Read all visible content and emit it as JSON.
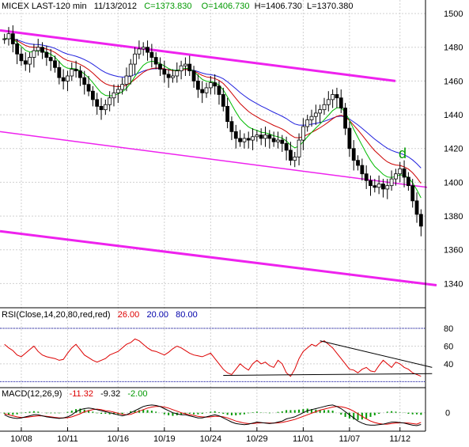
{
  "header": {
    "instrument": "MICEX LAST-120 min",
    "date": "11/13/2012",
    "close": "C=1373.830",
    "open": "O=1406.730",
    "high": "H=1406.730",
    "low": "L=1370.380"
  },
  "rsi_header": {
    "name": "RSI(Close,14,20,80,red,red)",
    "value": "26.00",
    "low_level": "20.00",
    "high_level": "80.00"
  },
  "macd_header": {
    "name": "MACD(12,26,9)",
    "macd": "-11.32",
    "signal": "-9.32",
    "hist": "-2.00"
  },
  "annotation": "d",
  "colors": {
    "price": "#000000",
    "ma_fast": "#00bb00",
    "ma_mid": "#cc0000",
    "ma_slow": "#2020dd",
    "channel": "#ee22ee",
    "rsi": "#dd0000",
    "rsi_level": "#000099",
    "macd": "#000000",
    "macd_signal": "#dd0000",
    "macd_hist": "#009900",
    "grid": "#d0d0d0"
  },
  "chart_data": [
    {
      "type": "line",
      "pane": "price",
      "chart_style": "ohlc",
      "x": [
        "10/08",
        "10/11",
        "10/16",
        "10/19",
        "10/24",
        "10/29",
        "11/01",
        "11/07",
        "11/12"
      ],
      "ylim": [
        1328,
        1508
      ],
      "y_ticks": [
        1340,
        1360,
        1380,
        1400,
        1420,
        1440,
        1460,
        1480,
        1500
      ],
      "grid": true,
      "close_series": [
        1485,
        1488,
        1482,
        1476,
        1472,
        1470,
        1474,
        1478,
        1480,
        1477,
        1474,
        1472,
        1468,
        1462,
        1460,
        1463,
        1467,
        1466,
        1462,
        1458,
        1454,
        1449,
        1445,
        1443,
        1446,
        1450,
        1453,
        1455,
        1458,
        1463,
        1470,
        1476,
        1479,
        1480,
        1477,
        1474,
        1470,
        1467,
        1464,
        1462,
        1463,
        1466,
        1469,
        1470,
        1466,
        1460,
        1455,
        1453,
        1456,
        1459,
        1457,
        1452,
        1445,
        1436,
        1430,
        1426,
        1424,
        1426,
        1425,
        1427,
        1428,
        1426,
        1428,
        1426,
        1424,
        1425,
        1423,
        1419,
        1413,
        1415,
        1425,
        1433,
        1437,
        1439,
        1441,
        1443,
        1446,
        1449,
        1452,
        1450,
        1444,
        1432,
        1420,
        1413,
        1410,
        1405,
        1401,
        1398,
        1397,
        1399,
        1396,
        1398,
        1402,
        1405,
        1408,
        1403,
        1398,
        1389,
        1381,
        1374
      ],
      "ma_fast_period": 8,
      "ma_mid_period": 16,
      "ma_slow_period": 28,
      "channel_lines": [
        {
          "name": "upper",
          "y": [
            1490,
            1460
          ]
        },
        {
          "name": "middle",
          "y": [
            1430,
            1397
          ]
        },
        {
          "name": "lower",
          "y": [
            1371,
            1339
          ]
        }
      ]
    },
    {
      "type": "line",
      "pane": "rsi",
      "ylim": [
        15,
        88
      ],
      "y_ticks": [
        40,
        60,
        80
      ],
      "levels": [
        20,
        80
      ],
      "values": [
        62,
        58,
        55,
        50,
        48,
        52,
        56,
        60,
        54,
        50,
        48,
        47,
        46,
        44,
        45,
        52,
        58,
        62,
        56,
        50,
        47,
        44,
        42,
        44,
        46,
        50,
        52,
        54,
        58,
        62,
        64,
        68,
        66,
        62,
        58,
        55,
        54,
        52,
        50,
        53,
        57,
        60,
        58,
        55,
        52,
        50,
        49,
        48,
        50,
        52,
        46,
        40,
        34,
        30,
        28,
        34,
        40,
        36,
        33,
        40,
        44,
        40,
        42,
        38,
        36,
        44,
        40,
        30,
        26,
        34,
        46,
        54,
        58,
        62,
        60,
        64,
        66,
        62,
        58,
        52,
        46,
        40,
        34,
        33,
        30,
        34,
        36,
        32,
        31,
        38,
        44,
        40,
        36,
        42,
        40,
        36,
        34,
        30,
        28,
        26
      ],
      "trendlines": [
        {
          "name": "resistance",
          "from": [
            75,
            66
          ],
          "to": [
            99,
            36
          ]
        },
        {
          "name": "support",
          "from": [
            52,
            27
          ],
          "to": [
            99,
            29
          ]
        }
      ]
    },
    {
      "type": "line",
      "pane": "macd",
      "ylim": [
        -14,
        12
      ],
      "y_ticks": [
        0
      ],
      "macd": [
        -2,
        -4,
        -5,
        -5.5,
        -5,
        -4,
        -3,
        -2,
        -2,
        -3,
        -4,
        -4.5,
        -5,
        -5.5,
        -5,
        -4,
        -2,
        1,
        3,
        4,
        4.5,
        4,
        3,
        2,
        1,
        0,
        -1,
        -2,
        -3,
        -2,
        0,
        2,
        4,
        6,
        7,
        7.5,
        7,
        6,
        4,
        2,
        0,
        -1,
        -2,
        -2,
        -3,
        -4,
        -5,
        -5,
        -4,
        -3,
        -2,
        -3,
        -5,
        -7,
        -9,
        -10.5,
        -11,
        -11.5,
        -11,
        -10,
        -9,
        -9.5,
        -10,
        -10.5,
        -10,
        -9,
        -8,
        -6,
        -5,
        -4,
        -2,
        0,
        2,
        3,
        4,
        5,
        6,
        7,
        7.5,
        6,
        4,
        1,
        -2,
        -5,
        -8,
        -10,
        -11.5,
        -12,
        -12,
        -11.5,
        -11,
        -10,
        -9,
        -9,
        -9.5,
        -10,
        -11,
        -12,
        -12.5,
        -11.3
      ],
      "signal": [
        -1,
        -2,
        -3,
        -4,
        -4.5,
        -4.5,
        -4,
        -3.5,
        -3,
        -3,
        -3.5,
        -4,
        -4.5,
        -5,
        -5,
        -4.8,
        -4,
        -2.5,
        -1,
        1,
        2,
        3,
        3.5,
        3,
        2,
        1.5,
        0.5,
        -0.5,
        -1.5,
        -2,
        -1.5,
        0,
        1.5,
        3,
        4.5,
        5.5,
        6,
        6,
        5.5,
        4.5,
        3,
        1.5,
        0,
        -1,
        -2,
        -2.5,
        -3.5,
        -4,
        -4.2,
        -4,
        -3.5,
        -3.5,
        -4,
        -5,
        -6.5,
        -8,
        -9,
        -10,
        -10.5,
        -10.5,
        -10,
        -9.8,
        -9.8,
        -10,
        -10,
        -9.8,
        -9.3,
        -8.5,
        -7.5,
        -6.5,
        -5,
        -3.5,
        -2,
        -0.5,
        1,
        2.5,
        3.5,
        4.5,
        5.5,
        6,
        5.8,
        5,
        3.5,
        1.5,
        -1,
        -3.5,
        -6,
        -8,
        -9.5,
        -10.5,
        -11,
        -11,
        -10.5,
        -10,
        -9.8,
        -9.8,
        -10,
        -10.5,
        -11,
        -9.3
      ]
    }
  ]
}
